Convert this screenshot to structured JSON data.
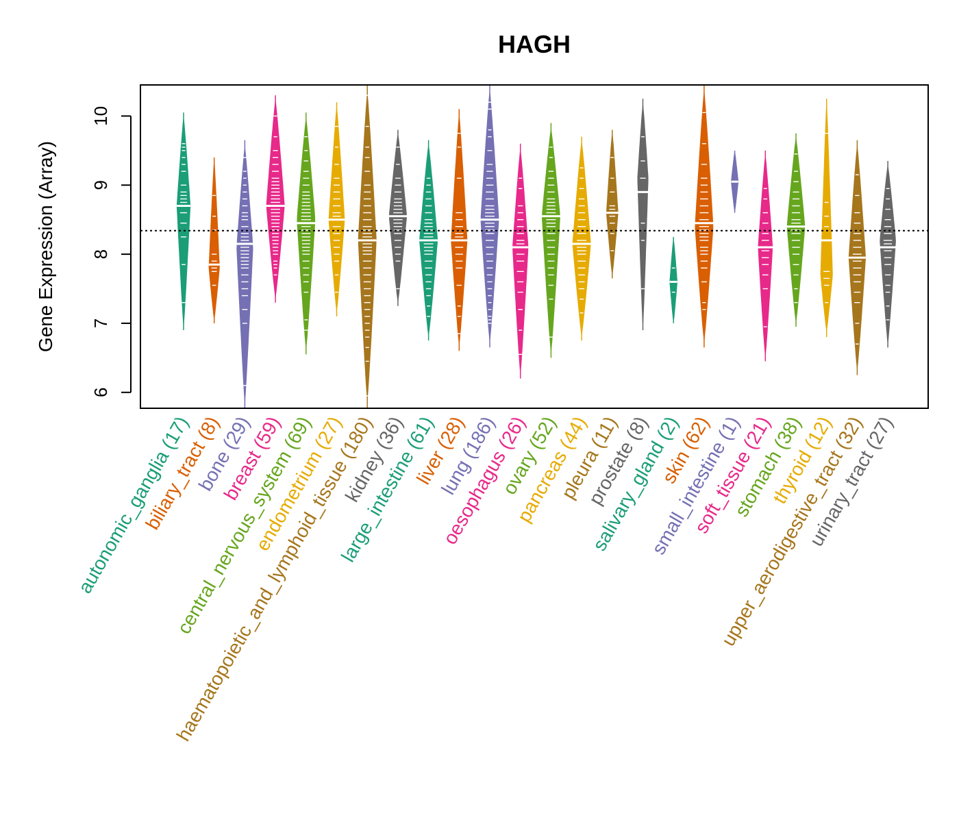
{
  "chart_data": {
    "type": "violin",
    "title": "HAGH",
    "xlabel": "",
    "ylabel": "Gene Expression (Array)",
    "ylim": [
      5.77,
      10.45
    ],
    "yticks": [
      6,
      7,
      8,
      9,
      10
    ],
    "reference_line": 8.34,
    "categories": [
      {
        "name": "autonomic_ganglia",
        "n": 17,
        "label": "autonomic_ganglia (17)",
        "color": "#1B9E77",
        "min": 6.9,
        "max": 10.05,
        "median": 8.7,
        "mode": 8.7,
        "points": [
          7.3,
          7.85,
          8.25,
          8.45,
          8.6,
          8.7,
          8.75,
          8.8,
          8.85,
          8.9,
          9.0,
          9.2,
          9.3,
          9.4,
          9.5,
          9.55,
          9.6
        ]
      },
      {
        "name": "biliary_tract",
        "n": 8,
        "label": "biliary_tract (8)",
        "color": "#D95F02",
        "min": 7.0,
        "max": 9.4,
        "median": 7.85,
        "mode": 7.8,
        "points": [
          7.55,
          7.75,
          7.8,
          7.9,
          8.0,
          8.35,
          8.55,
          8.85
        ]
      },
      {
        "name": "bone",
        "n": 29,
        "label": "bone (29)",
        "color": "#7570B3",
        "min": 5.77,
        "max": 9.65,
        "median": 8.15,
        "mode": 8.1,
        "points": [
          6.1,
          7.0,
          7.2,
          7.4,
          7.5,
          7.6,
          7.7,
          7.8,
          7.85,
          7.9,
          7.95,
          8.0,
          8.05,
          8.1,
          8.15,
          8.2,
          8.25,
          8.3,
          8.4,
          8.5,
          8.55,
          8.6,
          8.7,
          8.8,
          8.9,
          9.0,
          9.1,
          9.2,
          9.4
        ]
      },
      {
        "name": "breast",
        "n": 59,
        "label": "breast (59)",
        "color": "#E7298A",
        "min": 7.3,
        "max": 10.3,
        "median": 8.7,
        "mode": 8.7,
        "points": [
          7.7,
          7.8,
          7.85,
          7.9,
          8.0,
          8.05,
          8.1,
          8.15,
          8.2,
          8.25,
          8.3,
          8.35,
          8.4,
          8.45,
          8.5,
          8.55,
          8.6,
          8.65,
          8.7,
          8.75,
          8.8,
          8.85,
          8.9,
          8.95,
          9.0,
          9.05,
          9.1,
          9.2,
          9.3,
          9.4,
          9.5,
          9.7,
          10.0
        ]
      },
      {
        "name": "central_nervous_system",
        "n": 69,
        "label": "central_nervous_system (69)",
        "color": "#66A61E",
        "min": 6.55,
        "max": 10.05,
        "median": 8.45,
        "mode": 8.5,
        "points": [
          6.9,
          7.05,
          7.45,
          7.6,
          7.7,
          7.8,
          7.9,
          8.0,
          8.05,
          8.1,
          8.15,
          8.2,
          8.25,
          8.3,
          8.35,
          8.4,
          8.45,
          8.5,
          8.55,
          8.6,
          8.65,
          8.7,
          8.75,
          8.8,
          8.85,
          8.9,
          9.0,
          9.1,
          9.2,
          9.35,
          9.5,
          9.7
        ]
      },
      {
        "name": "endometrium",
        "n": 27,
        "label": "endometrium (27)",
        "color": "#E6AB02",
        "min": 7.1,
        "max": 10.2,
        "median": 8.5,
        "mode": 8.5,
        "points": [
          7.45,
          7.7,
          7.9,
          8.0,
          8.1,
          8.2,
          8.3,
          8.4,
          8.5,
          8.55,
          8.6,
          8.7,
          8.8,
          8.9,
          9.0,
          9.1,
          9.3,
          9.55,
          9.85
        ]
      },
      {
        "name": "haematopoietic_and_lymphoid_tissue",
        "n": 180,
        "label": "haematopoietic_and_lymphoid_tissue (180)",
        "color": "#A6761D",
        "min": 5.77,
        "max": 10.45,
        "median": 8.2,
        "mode": 8.2,
        "points": [
          5.95,
          6.45,
          6.65,
          6.8,
          6.9,
          7.0,
          7.1,
          7.2,
          7.3,
          7.4,
          7.5,
          7.6,
          7.7,
          7.8,
          7.9,
          8.0,
          8.05,
          8.1,
          8.15,
          8.2,
          8.25,
          8.3,
          8.35,
          8.4,
          8.5,
          8.6,
          8.7,
          8.8,
          8.9,
          9.0,
          9.2,
          9.4,
          9.55,
          9.85,
          10.3
        ]
      },
      {
        "name": "kidney",
        "n": 36,
        "label": "kidney (36)",
        "color": "#666666",
        "min": 7.25,
        "max": 9.8,
        "median": 8.55,
        "mode": 8.55,
        "points": [
          7.5,
          7.9,
          8.0,
          8.1,
          8.2,
          8.3,
          8.35,
          8.4,
          8.45,
          8.5,
          8.55,
          8.6,
          8.65,
          8.7,
          8.75,
          8.8,
          8.9,
          9.0,
          9.1,
          9.3,
          9.55
        ]
      },
      {
        "name": "large_intestine",
        "n": 61,
        "label": "large_intestine (61)",
        "color": "#1B9E77",
        "min": 6.75,
        "max": 9.65,
        "median": 8.2,
        "mode": 8.2,
        "points": [
          7.1,
          7.25,
          7.4,
          7.5,
          7.6,
          7.7,
          7.8,
          7.9,
          8.0,
          8.05,
          8.1,
          8.15,
          8.2,
          8.25,
          8.3,
          8.35,
          8.4,
          8.45,
          8.5,
          8.6,
          8.7,
          8.8,
          8.9,
          9.0,
          9.1
        ]
      },
      {
        "name": "liver",
        "n": 28,
        "label": "liver (28)",
        "color": "#D95F02",
        "min": 6.6,
        "max": 10.1,
        "median": 8.2,
        "mode": 8.2,
        "points": [
          6.85,
          7.1,
          7.25,
          7.55,
          7.8,
          7.9,
          8.0,
          8.1,
          8.2,
          8.25,
          8.3,
          8.4,
          8.5,
          8.6,
          9.1,
          9.55,
          9.75
        ]
      },
      {
        "name": "lung",
        "n": 186,
        "label": "lung (186)",
        "color": "#7570B3",
        "min": 6.65,
        "max": 10.45,
        "median": 8.5,
        "mode": 8.5,
        "points": [
          7.0,
          7.05,
          7.1,
          7.2,
          7.3,
          7.4,
          7.5,
          7.6,
          7.7,
          7.8,
          7.9,
          8.0,
          8.1,
          8.2,
          8.3,
          8.35,
          8.4,
          8.45,
          8.5,
          8.55,
          8.6,
          8.65,
          8.7,
          8.8,
          8.9,
          9.0,
          9.1,
          9.2,
          9.3,
          9.5,
          9.7,
          9.8,
          10.1,
          10.2
        ]
      },
      {
        "name": "oesophagus",
        "n": 26,
        "label": "oesophagus (26)",
        "color": "#E7298A",
        "min": 6.2,
        "max": 9.6,
        "median": 8.1,
        "mode": 8.1,
        "points": [
          6.55,
          6.9,
          7.2,
          7.45,
          7.6,
          7.75,
          7.9,
          8.0,
          8.1,
          8.15,
          8.2,
          8.3,
          8.4,
          8.5,
          8.6,
          8.7,
          8.95,
          9.1
        ]
      },
      {
        "name": "ovary",
        "n": 52,
        "label": "ovary (52)",
        "color": "#66A61E",
        "min": 6.5,
        "max": 9.9,
        "median": 8.55,
        "mode": 8.55,
        "points": [
          6.8,
          7.35,
          7.55,
          7.7,
          7.8,
          7.9,
          8.0,
          8.1,
          8.2,
          8.3,
          8.4,
          8.45,
          8.5,
          8.55,
          8.6,
          8.65,
          8.7,
          8.75,
          8.8,
          8.9,
          9.0,
          9.1,
          9.2,
          9.4,
          9.55
        ]
      },
      {
        "name": "pancreas",
        "n": 44,
        "label": "pancreas (44)",
        "color": "#E6AB02",
        "min": 6.75,
        "max": 9.7,
        "median": 8.15,
        "mode": 8.15,
        "points": [
          7.15,
          7.35,
          7.5,
          7.6,
          7.7,
          7.8,
          7.9,
          8.0,
          8.05,
          8.1,
          8.15,
          8.2,
          8.3,
          8.4,
          8.5,
          8.6,
          8.7,
          8.8,
          8.95,
          9.1,
          9.25
        ]
      },
      {
        "name": "pleura",
        "n": 11,
        "label": "pleura (11)",
        "color": "#A6761D",
        "min": 7.65,
        "max": 9.8,
        "median": 8.6,
        "mode": 8.6,
        "points": [
          8.05,
          8.3,
          8.45,
          8.55,
          8.6,
          8.65,
          8.7,
          8.9,
          9.1,
          9.4
        ]
      },
      {
        "name": "prostate",
        "n": 8,
        "label": "prostate (8)",
        "color": "#666666",
        "min": 6.9,
        "max": 10.25,
        "median": 8.9,
        "mode": 9.1,
        "points": [
          7.5,
          8.2,
          8.45,
          8.9,
          9.1,
          9.35,
          9.7
        ]
      },
      {
        "name": "salivary_gland",
        "n": 2,
        "label": "salivary_gland (2)",
        "color": "#1B9E77",
        "min": 7.0,
        "max": 8.25,
        "median": 7.6,
        "mode": 7.6,
        "points": [
          7.45,
          7.8
        ]
      },
      {
        "name": "skin",
        "n": 62,
        "label": "skin (62)",
        "color": "#D95F02",
        "min": 6.65,
        "max": 10.45,
        "median": 8.45,
        "mode": 8.4,
        "points": [
          7.2,
          7.3,
          7.6,
          7.8,
          7.9,
          8.0,
          8.05,
          8.1,
          8.2,
          8.25,
          8.3,
          8.35,
          8.4,
          8.45,
          8.5,
          8.6,
          8.7,
          8.8,
          8.9,
          9.0,
          9.1,
          9.3,
          9.6,
          10.05
        ]
      },
      {
        "name": "small_intestine",
        "n": 1,
        "label": "small_intestine (1)",
        "color": "#7570B3",
        "min": 8.6,
        "max": 9.5,
        "median": 9.05,
        "mode": 9.05,
        "points": [
          9.05
        ]
      },
      {
        "name": "soft_tissue",
        "n": 21,
        "label": "soft_tissue (21)",
        "color": "#E7298A",
        "min": 6.45,
        "max": 9.5,
        "median": 8.1,
        "mode": 8.1,
        "points": [
          6.95,
          7.5,
          7.7,
          7.85,
          7.95,
          8.05,
          8.1,
          8.2,
          8.3,
          8.45,
          8.6,
          8.8,
          8.95
        ]
      },
      {
        "name": "stomach",
        "n": 38,
        "label": "stomach (38)",
        "color": "#66A61E",
        "min": 6.95,
        "max": 9.75,
        "median": 8.4,
        "mode": 8.4,
        "points": [
          7.3,
          7.5,
          7.7,
          7.85,
          8.0,
          8.1,
          8.2,
          8.3,
          8.35,
          8.4,
          8.45,
          8.5,
          8.6,
          8.7,
          8.8,
          8.9,
          9.05,
          9.2,
          9.45
        ]
      },
      {
        "name": "thyroid",
        "n": 12,
        "label": "thyroid (12)",
        "color": "#E6AB02",
        "min": 6.8,
        "max": 10.25,
        "median": 8.2,
        "mode": 7.7,
        "points": [
          7.3,
          7.55,
          7.65,
          7.75,
          8.2,
          8.4,
          8.55,
          8.75,
          9.75
        ]
      },
      {
        "name": "upper_aerodigestive_tract",
        "n": 32,
        "label": "upper_aerodigestive_tract (32)",
        "color": "#A6761D",
        "min": 6.25,
        "max": 9.65,
        "median": 7.95,
        "mode": 7.95,
        "points": [
          6.7,
          7.0,
          7.3,
          7.45,
          7.6,
          7.7,
          7.8,
          7.9,
          7.95,
          8.0,
          8.1,
          8.2,
          8.3,
          8.45,
          8.6,
          8.85,
          9.15
        ]
      },
      {
        "name": "urinary_tract",
        "n": 27,
        "label": "urinary_tract (27)",
        "color": "#666666",
        "min": 6.65,
        "max": 9.35,
        "median": 8.1,
        "mode": 8.2,
        "points": [
          7.05,
          7.25,
          7.45,
          7.55,
          7.7,
          7.85,
          7.95,
          8.05,
          8.1,
          8.15,
          8.2,
          8.3,
          8.4,
          8.5,
          8.65,
          8.8,
          8.95
        ]
      }
    ]
  }
}
